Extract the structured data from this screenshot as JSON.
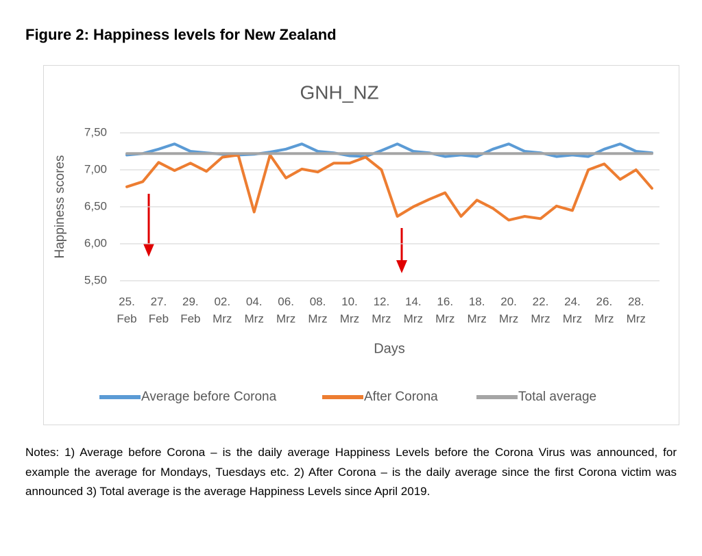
{
  "caption": "Figure 2: Happiness levels for New Zealand",
  "notes": "Notes: 1) Average before Corona – is the daily average Happiness Levels before the Corona Virus was announced, for example the average for Mondays, Tuesdays etc. 2) After Corona – is the daily average since the first Corona victim was announced 3) Total average is the average Happiness Levels since April 2019.",
  "chart_data": {
    "type": "line",
    "title": "GNH_NZ",
    "x_label": "Days",
    "y_label": "Happiness scores",
    "categories": [
      "25. Feb",
      null,
      "27. Feb",
      null,
      "29. Feb",
      null,
      "02. Mrz",
      null,
      "04. Mrz",
      null,
      "06. Mrz",
      null,
      "08. Mrz",
      null,
      "10. Mrz",
      null,
      "12. Mrz",
      null,
      "14. Mrz",
      null,
      "16. Mrz",
      null,
      "18. Mrz",
      null,
      "20. Mrz",
      null,
      "22. Mrz",
      null,
      "24. Mrz",
      null,
      "26. Mrz",
      null,
      "28. Mrz",
      null
    ],
    "ylim": [
      5.5,
      7.5
    ],
    "yticks": [
      {
        "value": 5.5,
        "label": "5,50"
      },
      {
        "value": 6,
        "label": "6,00"
      },
      {
        "value": 6.5,
        "label": "6,50"
      },
      {
        "value": 7,
        "label": "7,00"
      },
      {
        "value": 7.5,
        "label": "7,50"
      }
    ],
    "grid": true,
    "legend": "bottom",
    "series": [
      {
        "name": "Average before Corona",
        "color": "#5b9bd5",
        "values": [
          7.2,
          7.22,
          7.28,
          7.35,
          7.25,
          7.23,
          7.21,
          7.2,
          7.21,
          7.24,
          7.28,
          7.35,
          7.25,
          7.23,
          7.19,
          7.18,
          7.26,
          7.35,
          7.25,
          7.23,
          7.18,
          7.2,
          7.18,
          7.28,
          7.35,
          7.25,
          7.23,
          7.18,
          7.2,
          7.18,
          7.28,
          7.35,
          7.25,
          7.23
        ]
      },
      {
        "name": "After Corona",
        "color": "#ed7d31",
        "values": [
          6.77,
          6.84,
          7.1,
          6.99,
          7.09,
          6.98,
          7.17,
          7.2,
          6.43,
          7.2,
          6.89,
          7.01,
          6.97,
          7.09,
          7.09,
          7.17,
          7.0,
          6.37,
          6.5,
          6.6,
          6.69,
          6.37,
          6.59,
          6.48,
          6.32,
          6.37,
          6.34,
          6.51,
          6.45,
          7.0,
          7.08,
          6.87,
          7.0,
          6.75
        ]
      },
      {
        "name": "Total average",
        "color": "#a5a5a5",
        "values": [
          7.22,
          7.22,
          7.22,
          7.22,
          7.22,
          7.22,
          7.22,
          7.22,
          7.22,
          7.22,
          7.22,
          7.22,
          7.22,
          7.22,
          7.22,
          7.22,
          7.22,
          7.22,
          7.22,
          7.22,
          7.22,
          7.22,
          7.22,
          7.22,
          7.22,
          7.22,
          7.22,
          7.22,
          7.22,
          7.22,
          7.22,
          7.22,
          7.22,
          7.22
        ]
      }
    ]
  }
}
